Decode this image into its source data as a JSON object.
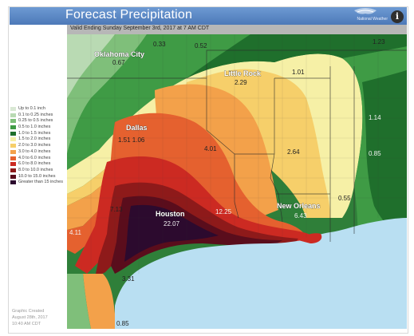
{
  "header": {
    "title": "Forecast Precipitation",
    "agency": "National Weather"
  },
  "valid": "Valid Ending Sunday September 3rd, 2017 at 7 AM CDT",
  "legend": {
    "items": [
      {
        "label": "Up to 0.1 inch",
        "color": "#d9e8d4"
      },
      {
        "label": "0.1 to 0.25 inches",
        "color": "#b9dab3"
      },
      {
        "label": "0.25 to 0.5 inches",
        "color": "#7fbf7a"
      },
      {
        "label": "0.5 to 1.0 inches",
        "color": "#3f9b45"
      },
      {
        "label": "1.0 to 1.5 inches",
        "color": "#1f6f2c"
      },
      {
        "label": "1.5 to 2.0 inches",
        "color": "#f6f0a6"
      },
      {
        "label": "2.0 to 3.0 inches",
        "color": "#f6cf6a"
      },
      {
        "label": "3.0 to 4.0 inches",
        "color": "#f3a14a"
      },
      {
        "label": "4.0 to 6.0 inches",
        "color": "#e5612f"
      },
      {
        "label": "6.0 to 8.0 inches",
        "color": "#cc2a22"
      },
      {
        "label": "8.0 to 10.0 inches",
        "color": "#8e1a1a"
      },
      {
        "label": "10.0 to 15.0 inches",
        "color": "#5a0d1c"
      },
      {
        "label": "Greater than 15 inches",
        "color": "#2c0a2e"
      }
    ]
  },
  "created": {
    "line1": "Graphic Created",
    "line2": "August 28th, 2017",
    "line3": "10:40 AM CDT"
  },
  "cities": {
    "oklahoma_city": "Oklahoma City",
    "little_rock": "Little Rock",
    "dallas": "Dallas",
    "new_orleans": "New Orleans",
    "houston": "Houston"
  },
  "values": {
    "v_top_left": "0.33",
    "v_top_mid": "0.52",
    "v_top_right": "1.23",
    "v_okc": "0.67",
    "v_little_rock": "2.29",
    "v_east1": "1.01",
    "v_east2": "1.14",
    "v_east3": "0.85",
    "v_dallas": "1.51 1.06",
    "v_shreveport": "4.01",
    "v_jackson": "2.64",
    "v_coast": "0.55",
    "v_neworleans": "6.43",
    "v_west": "7.13",
    "v_beaumont": "12.25",
    "v_houston": "22.07",
    "v_sw": "4.11",
    "v_corpus": "3.31",
    "v_south": "0.85"
  },
  "colors": {
    "header": "#5a86c4",
    "gulf": "#b9dff2"
  }
}
